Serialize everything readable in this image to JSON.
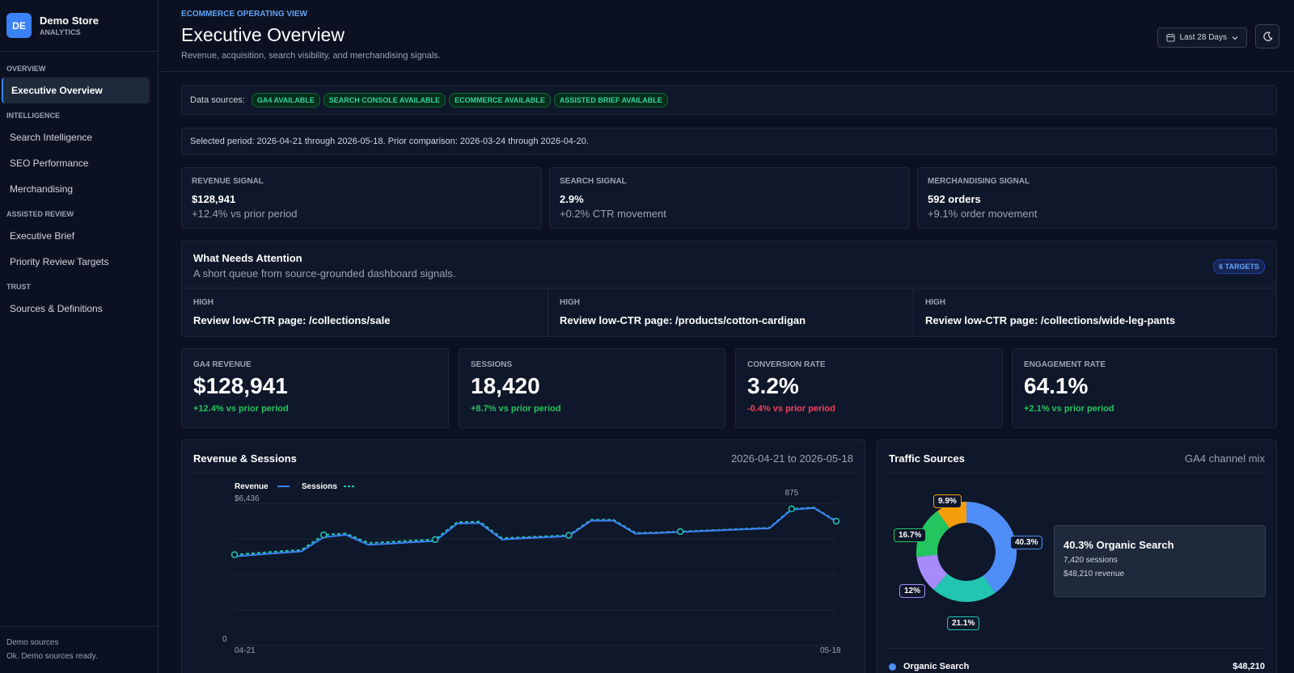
{
  "brand": {
    "logo": "DE",
    "name": "Demo Store",
    "sub": "ANALYTICS"
  },
  "nav": {
    "overview_label": "OVERVIEW",
    "executive_overview": "Executive Overview",
    "intelligence_label": "INTELLIGENCE",
    "search_intelligence": "Search Intelligence",
    "seo_performance": "SEO Performance",
    "merchandising": "Merchandising",
    "assisted_label": "ASSISTED REVIEW",
    "executive_brief": "Executive Brief",
    "priority_targets": "Priority Review Targets",
    "trust_label": "TRUST",
    "sources_definitions": "Sources & Definitions"
  },
  "footer": {
    "line1": "Demo sources",
    "line2": "Ok. Demo sources ready."
  },
  "header": {
    "eyebrow": "ECOMMERCE OPERATING VIEW",
    "title": "Executive Overview",
    "subtitle": "Revenue, acquisition, search visibility, and merchandising signals.",
    "date_range": "Last 28 Days"
  },
  "sources": {
    "label": "Data sources:",
    "chips": [
      "GA4 AVAILABLE",
      "SEARCH CONSOLE AVAILABLE",
      "ECOMMERCE AVAILABLE",
      "ASSISTED BRIEF AVAILABLE"
    ]
  },
  "period": "Selected period: 2026-04-21 through 2026-05-18. Prior comparison: 2026-03-24 through 2026-04-20.",
  "signals": [
    {
      "label": "REVENUE SIGNAL",
      "value": "$128,941",
      "delta": "+12.4% vs prior period"
    },
    {
      "label": "SEARCH SIGNAL",
      "value": "2.9%",
      "delta": "+0.2% CTR movement"
    },
    {
      "label": "MERCHANDISING SIGNAL",
      "value": "592 orders",
      "delta": "+9.1% order movement"
    }
  ],
  "attention": {
    "title": "What Needs Attention",
    "subtitle": "A short queue from source-grounded dashboard signals.",
    "badge": "6 TARGETS",
    "items": [
      {
        "priority": "HIGH",
        "text": "Review low-CTR page: /collections/sale"
      },
      {
        "priority": "HIGH",
        "text": "Review low-CTR page: /products/cotton-cardigan"
      },
      {
        "priority": "HIGH",
        "text": "Review low-CTR page: /collections/wide-leg-pants"
      }
    ]
  },
  "kpis": [
    {
      "label": "GA4 REVENUE",
      "value": "$128,941",
      "delta": "+12.4% vs prior period",
      "trend": "up"
    },
    {
      "label": "SESSIONS",
      "value": "18,420",
      "delta": "+8.7% vs prior period",
      "trend": "up"
    },
    {
      "label": "CONVERSION RATE",
      "value": "3.2%",
      "delta": "-0.4% vs prior period",
      "trend": "down"
    },
    {
      "label": "ENGAGEMENT RATE",
      "value": "64.1%",
      "delta": "+2.1% vs prior period",
      "trend": "up"
    }
  ],
  "revenue_chart": {
    "title": "Revenue & Sessions",
    "range": "2026-04-21 to 2026-05-18",
    "legend_revenue": "Revenue",
    "legend_sessions": "Sessions",
    "max_label": "$6,436",
    "zero_label": "0",
    "peak_label": "875",
    "x_start": "04-21",
    "x_end": "05-18"
  },
  "traffic": {
    "title": "Traffic Sources",
    "subtitle": "GA4 channel mix",
    "tooltip_title": "40.3% Organic Search",
    "tooltip_sessions": "7,420 sessions",
    "tooltip_revenue": "$48,210 revenue",
    "row_name": "Organic Search",
    "row_value": "$48,210",
    "callouts": {
      "a": "9.9%",
      "b": "16.7%",
      "c": "40.3%",
      "d": "12%",
      "e": "21.1%"
    }
  },
  "chart_data": [
    {
      "type": "line",
      "title": "Revenue & Sessions",
      "x": [
        "04-21",
        "04-22",
        "04-23",
        "04-24",
        "04-25",
        "04-26",
        "04-27",
        "04-28",
        "04-29",
        "04-30",
        "05-01",
        "05-02",
        "05-03",
        "05-04",
        "05-05",
        "05-06",
        "05-07",
        "05-08",
        "05-09",
        "05-10",
        "05-11",
        "05-12",
        "05-13",
        "05-14",
        "05-15",
        "05-16",
        "05-17",
        "05-18"
      ],
      "series": [
        {
          "name": "Revenue",
          "values": [
            4180,
            4260,
            4330,
            4400,
            5000,
            5100,
            4680,
            4730,
            4790,
            4840,
            5580,
            5600,
            4900,
            4960,
            5000,
            5050,
            5700,
            5700,
            5150,
            5180,
            5220,
            5260,
            5300,
            5340,
            5380,
            6170,
            6240,
            5660
          ]
        },
        {
          "name": "Sessions",
          "values": [
            4260,
            4330,
            4400,
            4460,
            5100,
            5160,
            4760,
            4800,
            4860,
            4900,
            5640,
            5660,
            4960,
            5000,
            5040,
            5080,
            5740,
            5740,
            5180,
            5200,
            5240,
            5280,
            5320,
            5360,
            5400,
            6200,
            6260,
            5680
          ]
        }
      ],
      "ylim": [
        0,
        6436
      ],
      "legend": "top-left"
    },
    {
      "type": "pie",
      "title": "Traffic Sources",
      "labels": [
        "Organic Search",
        "",
        "",
        "",
        ""
      ],
      "values": [
        40.3,
        21.1,
        12,
        16.7,
        9.9
      ],
      "colors": [
        "#4f8ef7",
        "#22c5b0",
        "#a78bfa",
        "#22c55e",
        "#f59e0b"
      ]
    }
  ]
}
